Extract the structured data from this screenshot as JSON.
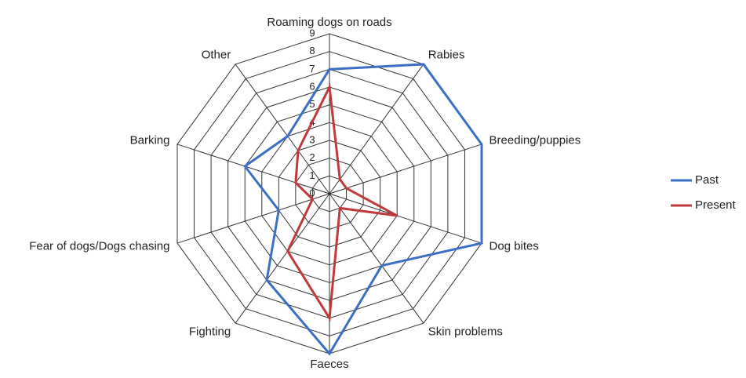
{
  "chart_data": {
    "type": "radar",
    "categories": [
      "Roaming dogs on roads",
      "Rabies",
      "Breeding/puppies",
      "Dog bites",
      "Skin problems",
      "Faeces",
      "Fighting",
      "Fear of dogs/Dogs chasing",
      "Barking",
      "Other"
    ],
    "series": [
      {
        "name": "Past",
        "color": "#3a6fc4",
        "values": [
          7,
          9,
          9,
          9,
          5,
          9,
          6,
          3,
          5,
          4
        ]
      },
      {
        "name": "Present",
        "color": "#c0393b",
        "values": [
          6,
          1,
          1,
          4,
          1,
          7,
          4,
          1,
          2,
          3
        ]
      }
    ],
    "rlim": [
      0,
      9
    ],
    "rticks": [
      0,
      1,
      2,
      3,
      4,
      5,
      6,
      7,
      8,
      9
    ],
    "grid": true,
    "legend": "right"
  }
}
